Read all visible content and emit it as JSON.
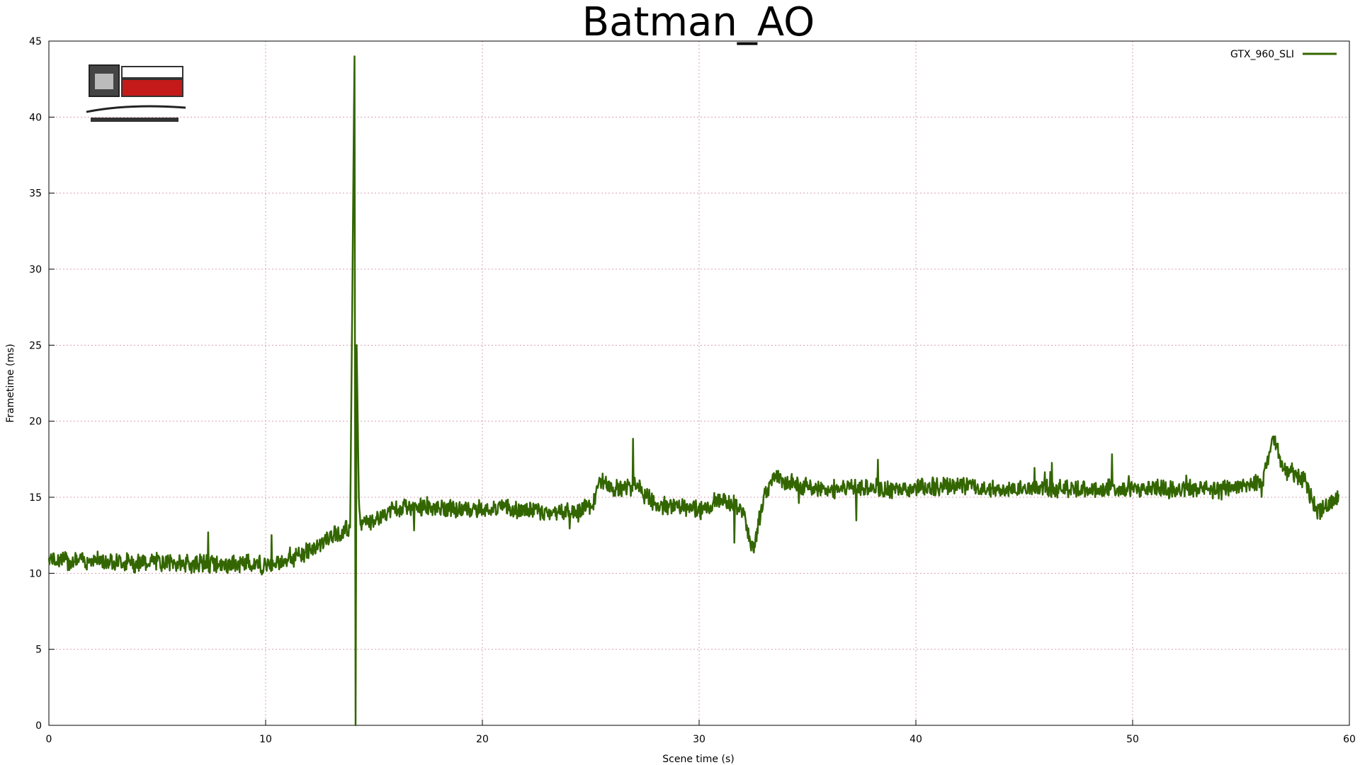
{
  "chart_data": {
    "type": "line",
    "title": "Batman_AO",
    "xlabel": "Scene time (s)",
    "ylabel": "Frametime (ms)",
    "xlim": [
      0,
      60
    ],
    "ylim": [
      0,
      45
    ],
    "x_ticks": [
      0,
      10,
      20,
      30,
      40,
      50,
      60
    ],
    "y_ticks": [
      0,
      5,
      10,
      15,
      20,
      25,
      30,
      35,
      40,
      45
    ],
    "grid": true,
    "legend_position": "top-right",
    "series": [
      {
        "name": "GTX_960_SLI",
        "color": "#336600",
        "x": [
          0,
          1,
          2,
          3,
          4,
          5,
          6,
          7,
          8,
          9,
          10,
          11,
          12,
          13,
          13.9,
          14.1,
          14.15,
          14.2,
          14.3,
          14.4,
          15,
          16,
          17,
          18,
          19,
          20,
          21,
          22,
          23,
          24,
          25,
          25.5,
          26,
          27,
          28,
          29,
          30,
          30.5,
          31,
          31.5,
          32,
          32.5,
          33,
          33.5,
          34,
          35,
          36,
          37,
          38,
          39,
          40,
          41,
          42,
          43,
          44,
          45,
          46,
          47,
          48,
          49,
          50,
          51,
          52,
          53,
          54,
          55,
          56,
          56.5,
          57,
          57.5,
          58,
          58.5,
          59,
          59.5
        ],
        "values": [
          11.0,
          10.8,
          10.9,
          10.8,
          10.7,
          10.8,
          10.6,
          10.7,
          10.5,
          10.6,
          10.6,
          10.9,
          11.5,
          12.4,
          13.0,
          44.0,
          0.0,
          25.0,
          15.0,
          13.2,
          13.5,
          14.3,
          14.4,
          14.3,
          14.2,
          14.2,
          14.3,
          14.1,
          14.0,
          14.1,
          14.3,
          16.2,
          15.5,
          15.8,
          14.5,
          14.3,
          14.1,
          14.3,
          14.9,
          14.6,
          14.0,
          11.5,
          15.2,
          16.5,
          16.0,
          15.7,
          15.5,
          15.6,
          15.6,
          15.5,
          15.6,
          15.7,
          15.8,
          15.6,
          15.5,
          15.6,
          15.6,
          15.6,
          15.5,
          15.6,
          15.5,
          15.6,
          15.5,
          15.6,
          15.5,
          15.6,
          16.0,
          19.0,
          16.8,
          16.5,
          16.0,
          14.0,
          14.3,
          15.2
        ]
      }
    ]
  }
}
